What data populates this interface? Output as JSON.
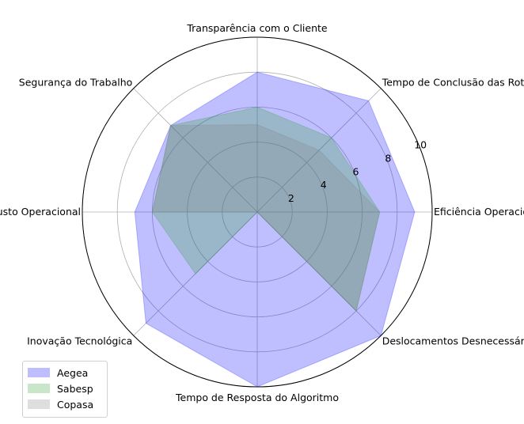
{
  "chart_data": {
    "type": "radar",
    "categories": [
      "Eficiência Operacional",
      "Tempo de Conclusão das Rotas",
      "Transparência com o Cliente",
      "Segurança do Trabalho",
      "Custo Operacional",
      "Inovação Tecnológica",
      "Tempo de Resposta do Algoritmo",
      "Deslocamentos Desnecessários"
    ],
    "series": [
      {
        "name": "Aegea",
        "values": [
          9,
          9,
          8,
          7,
          7,
          9,
          10,
          10
        ],
        "color": "#0000ff"
      },
      {
        "name": "Sabesp",
        "values": [
          7,
          6,
          6,
          7,
          6,
          5,
          0,
          8
        ],
        "color": "#2ca02c"
      },
      {
        "name": "Copasa",
        "values": [
          7,
          5,
          5,
          7,
          6,
          0,
          0,
          8
        ],
        "color": "#808080"
      }
    ],
    "rlim": [
      0,
      10
    ],
    "rticks": [
      2,
      4,
      6,
      8,
      10
    ],
    "grid": true,
    "legend_position": "lower-left"
  }
}
